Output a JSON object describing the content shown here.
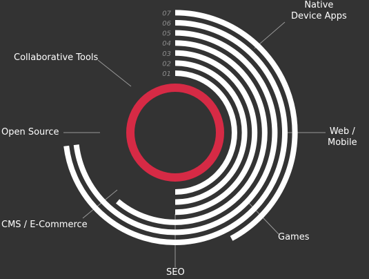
{
  "colors": {
    "background": "#333333",
    "ring": "#ffffff",
    "core": "#d62a45",
    "leader": "#9a9a9a",
    "number": "#8c8c8c"
  },
  "chart_data": {
    "type": "radial",
    "rings": [
      {
        "number": "01",
        "categories": [
          "Web / Mobile"
        ]
      },
      {
        "number": "02",
        "categories": [
          "Web / Mobile"
        ]
      },
      {
        "number": "03",
        "categories": [
          "Web / Mobile",
          "SEO"
        ]
      },
      {
        "number": "04",
        "categories": [
          "Web / Mobile",
          "SEO",
          "CMS / E-Commerce"
        ]
      },
      {
        "number": "05",
        "categories": [
          "Web / Mobile",
          "SEO",
          "CMS / E-Commerce",
          "Open Source"
        ]
      },
      {
        "number": "06",
        "categories": [
          "Web / Mobile",
          "SEO",
          "CMS / E-Commerce",
          "Open Source"
        ]
      },
      {
        "number": "07",
        "categories": [
          "Web / Mobile",
          "Games",
          "Native Device Apps"
        ]
      }
    ],
    "categories": [
      "Native Device Apps",
      "Web / Mobile",
      "Games",
      "SEO",
      "CMS / E-Commerce",
      "Open Source",
      "Collaborative Tools"
    ]
  },
  "labels": {
    "native": [
      "Native",
      "Device Apps"
    ],
    "web": [
      "Web /",
      "Mobile"
    ],
    "games": "Games",
    "seo": "SEO",
    "cms": "CMS / E-Commerce",
    "open_source": "Open Source",
    "collab": "Collaborative Tools"
  }
}
